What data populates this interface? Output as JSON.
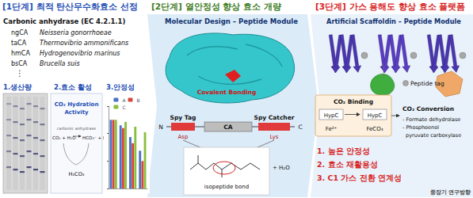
{
  "chart_data": {
    "type": "bar",
    "categories": [
      null,
      null,
      null,
      null
    ],
    "series": [
      {
        "name": "A",
        "color": "#4a72c8",
        "values": [
          100,
          92,
          75,
          55
        ]
      },
      {
        "name": "B",
        "color": "#d9473a",
        "values": [
          100,
          88,
          66,
          40
        ]
      },
      {
        "name": "C",
        "color": "#8bbf3f",
        "values": [
          100,
          97,
          90,
          82
        ]
      }
    ],
    "ylim": [
      0,
      120
    ],
    "yticks": [
      0,
      40,
      80,
      120
    ],
    "tick_labels": false,
    "legend": "top"
  },
  "stage1": {
    "header": "[1단계] 최적 탄산무수화효소 선정",
    "subtitle": "Carbonic anhydrase (EC 4.2.1.1)",
    "enzymes": [
      [
        "ngCA",
        "Neisseria gonorrhoeae"
      ],
      [
        "taCA",
        "Thermovibrio ammonificans"
      ],
      [
        "hmCA",
        "Hydrogenovibrio marinus"
      ],
      [
        "bsCA",
        "Brucella suis"
      ]
    ],
    "more": "⋮",
    "steps": [
      "1.생산량",
      "2.효소 활성",
      "3.안정성"
    ],
    "activity": {
      "title": [
        "CO₂ Hydration",
        "Activity"
      ],
      "reaction_left": "CO₂ + H₂O",
      "catalyst": "carbonic anhydrase",
      "reaction_right": "HCO₃⁻ + H⁺",
      "intermediate": "H₂CO₃"
    }
  },
  "stage2": {
    "header": "[2단계] 열안정성 향상 효소 개량",
    "title": "Molecular Design – Peptide Module",
    "bond_label": "Covalent Bonding",
    "construct": [
      "Spy Tag",
      "CA",
      "Spy Catcher"
    ],
    "termini": [
      "N",
      "C"
    ],
    "residues": [
      "Asp",
      "Lys"
    ],
    "product": "isopeptide bond",
    "byproduct": "+ H₂O"
  },
  "stage3": {
    "header": "[3단계] 가스 용해도 향상 효소 플랫폼",
    "title": "Artificial Scaffoldin – Peptide Module",
    "tag_label": "Peptide tag",
    "binding": {
      "title": "CO₂ Binding",
      "from": "HypC",
      "to": "HypC",
      "ion": "Fe²⁺",
      "product": "FeCO₃"
    },
    "conversion": {
      "title": "CO₂ Conversion",
      "items": [
        "- Formate dehydrolase",
        "- Phosphoenol",
        "pyruvate carboxylase"
      ]
    },
    "benefits": [
      "1. 높은 안정성",
      "2. 효소 재활용성",
      "3. C1 가스 전환 연계성"
    ],
    "note": "중장기 연구방향"
  }
}
